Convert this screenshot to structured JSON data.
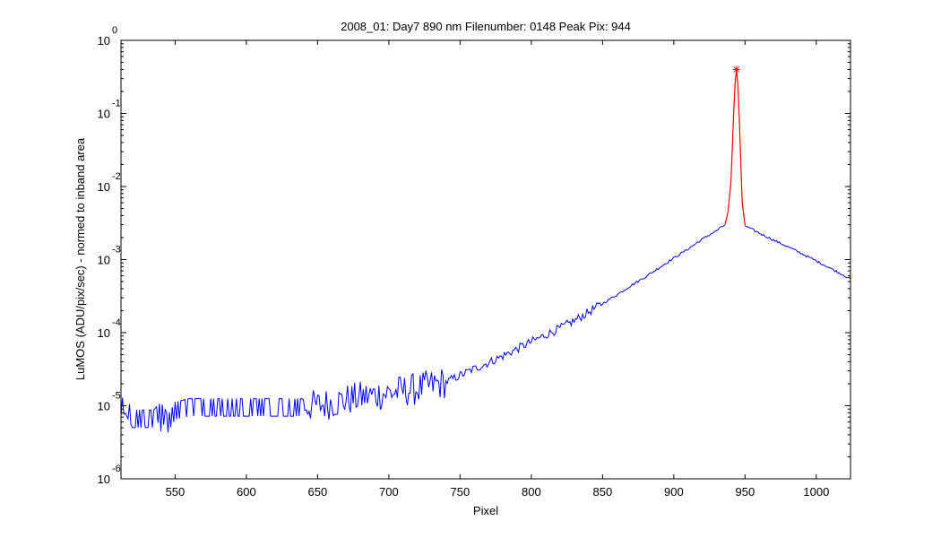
{
  "chart_data": {
    "type": "line",
    "title": "2008_01: Day7  890 nm  Filenumber: 0148 Peak Pix: 944",
    "xlabel": "Pixel",
    "ylabel": "LuMOS (ADU/pix/sec) - normed to inband area",
    "xlim": [
      512,
      1024
    ],
    "ylim": [
      1e-06,
      1
    ],
    "yscale": "log",
    "grid": false,
    "x_ticks": [
      550,
      600,
      650,
      700,
      750,
      800,
      850,
      900,
      950,
      1000
    ],
    "y_tick_exponents": [
      -6,
      -5,
      -4,
      -3,
      -2,
      -1,
      0
    ],
    "y_tick_base": "10",
    "peak_marker": {
      "x": 944,
      "y": 0.4,
      "symbol": "*"
    },
    "series": [
      {
        "color": "#0000ff",
        "segment": "out-of-band",
        "x": [
          512,
          515,
          520,
          525,
          530,
          535,
          540,
          545,
          550,
          560,
          570,
          580,
          590,
          600,
          610,
          620,
          630,
          640,
          650,
          660,
          670,
          680,
          690,
          700,
          710,
          720,
          730,
          740,
          750,
          760,
          770,
          780,
          790,
          800,
          810,
          820,
          830,
          840,
          850,
          860,
          870,
          880,
          890,
          900,
          910,
          920,
          930,
          936,
          950,
          960,
          970,
          980,
          990,
          1000,
          1010,
          1020,
          1024
        ],
        "y": [
          1e-05,
          1.1e-05,
          7e-06,
          7e-06,
          7e-06,
          7e-06,
          9e-06,
          6e-06,
          9e-06,
          1e-05,
          1e-05,
          1e-05,
          1e-05,
          1e-05,
          1e-05,
          1e-05,
          1e-05,
          1e-05,
          1e-05,
          1.1e-05,
          1.2e-05,
          1.3e-05,
          1.4e-05,
          1.5e-05,
          1.6e-05,
          1.7e-05,
          1.9e-05,
          2.1e-05,
          2.6e-05,
          3.2e-05,
          3.9e-05,
          4.8e-05,
          6e-05,
          7.5e-05,
          9.3e-05,
          0.000115,
          0.000145,
          0.00019,
          0.00025,
          0.00033,
          0.00044,
          0.00058,
          0.00078,
          0.00105,
          0.0014,
          0.0019,
          0.0025,
          0.003,
          0.0029,
          0.0023,
          0.00185,
          0.0015,
          0.0012,
          0.00096,
          0.00076,
          0.0006,
          0.00054
        ]
      },
      {
        "color": "#ff0000",
        "segment": "in-band",
        "x": [
          936,
          938,
          940,
          941,
          942,
          943,
          944,
          945,
          946,
          947,
          948,
          950
        ],
        "y": [
          0.003,
          0.0045,
          0.011,
          0.03,
          0.1,
          0.25,
          0.4,
          0.25,
          0.08,
          0.022,
          0.006,
          0.0029
        ]
      }
    ]
  }
}
